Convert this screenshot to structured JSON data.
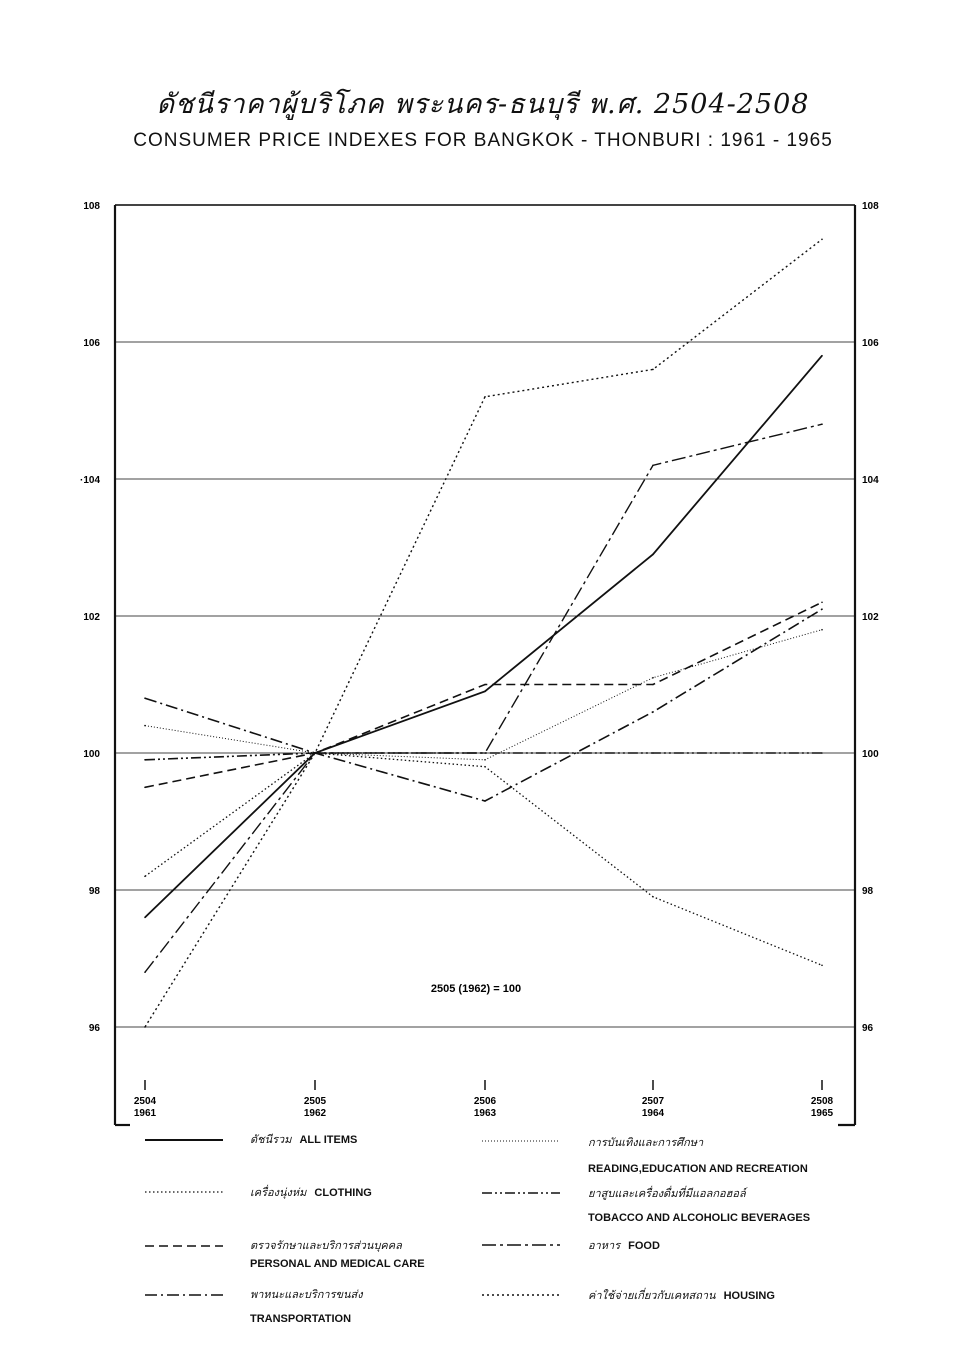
{
  "title_th": "ดัชนีราคาผู้บริโภค พระนคร-ธนบุรี พ.ศ. 2504-2508",
  "title_en": "CONSUMER PRICE INDEXES FOR BANGKOK - THONBURI : 1961 - 1965",
  "base_note": "2505 (1962) = 100",
  "chart_data": {
    "type": "line",
    "x": [
      "2504\n1961",
      "2505\n1962",
      "2506\n1963",
      "2507\n1964",
      "2508\n1965"
    ],
    "x_labels": [
      {
        "be": "2504",
        "ad": "1961"
      },
      {
        "be": "2505",
        "ad": "1962"
      },
      {
        "be": "2506",
        "ad": "1963"
      },
      {
        "be": "2507",
        "ad": "1964"
      },
      {
        "be": "2508",
        "ad": "1965"
      }
    ],
    "ylim": [
      96,
      108
    ],
    "yticks_left": [
      "108",
      "106",
      "·104",
      "102",
      "100",
      "98",
      "96"
    ],
    "yticks_right": [
      "108",
      "106",
      "104",
      "102",
      "100",
      "98",
      "96"
    ],
    "ytick_values": [
      108,
      106,
      104,
      102,
      100,
      98,
      96
    ],
    "grid": true,
    "legend_position": "bottom",
    "series": [
      {
        "name": "ALL ITEMS",
        "name_th": "ดัชนีรวม",
        "style": "solid",
        "values": [
          97.6,
          100,
          100.9,
          102.9,
          105.8
        ]
      },
      {
        "name": "CLOTHING",
        "name_th": "เครื่องนุ่งห่ม",
        "style": "dotted",
        "values": [
          98.2,
          100,
          99.8,
          97.9,
          96.9
        ]
      },
      {
        "name": "PERSONAL AND MEDICAL CARE",
        "name_th": "ตรวจรักษาและบริการส่วนบุคคล",
        "style": "dashed",
        "values": [
          99.5,
          100,
          101.0,
          101.0,
          102.2
        ]
      },
      {
        "name": "TRANSPORTATION",
        "name_th": "พาหนะและบริการขนส่ง",
        "style": "dashdot",
        "values": [
          100.8,
          100,
          99.3,
          100.6,
          102.1
        ]
      },
      {
        "name": "READING, EDUCATION AND RECREATION",
        "name_th": "การบันเทิงและการศึกษา",
        "style": "finedot",
        "values": [
          100.4,
          100,
          99.9,
          101.1,
          101.8
        ]
      },
      {
        "name": "TOBACCO AND ALCOHOLIC BEVERAGES",
        "name_th": "ยาสูบและเครื่องดื่มที่มีแอลกอฮอล์",
        "style": "dashdotdot",
        "values": [
          99.9,
          100,
          100,
          100,
          100
        ]
      },
      {
        "name": "FOOD",
        "name_th": "อาหาร",
        "style": "longdashdot",
        "values": [
          96.8,
          100,
          100,
          104.2,
          104.8
        ]
      },
      {
        "name": "HOUSING",
        "name_th": "ค่าใช้จ่ายเกี่ยวกับเคหสถาน",
        "style": "smalldot",
        "values": [
          96.0,
          100,
          105.2,
          105.6,
          107.5
        ]
      }
    ]
  },
  "legend": [
    {
      "th": "ดัชนีรวม",
      "en": "ALL ITEMS"
    },
    {
      "th": "เครื่องนุ่งห่ม",
      "en": "CLOTHING"
    },
    {
      "th": "ตรวจรักษาและบริการส่วนบุคคล",
      "en": "PERSONAL AND MEDICAL CARE"
    },
    {
      "th": "พาหนะและบริการขนส่ง",
      "en": "TRANSPORTATION"
    },
    {
      "th": "การบันเทิงและการศึกษา",
      "en": "READING,EDUCATION AND RECREATION"
    },
    {
      "th": "ยาสูบและเครื่องดื่มที่มีแอลกอฮอล์",
      "en": "TOBACCO AND ALCOHOLIC BEVERAGES"
    },
    {
      "th": "อาหาร",
      "en": "FOOD"
    },
    {
      "th": "ค่าใช้จ่ายเกี่ยวกับเคหสถาน",
      "en": "HOUSING"
    }
  ]
}
